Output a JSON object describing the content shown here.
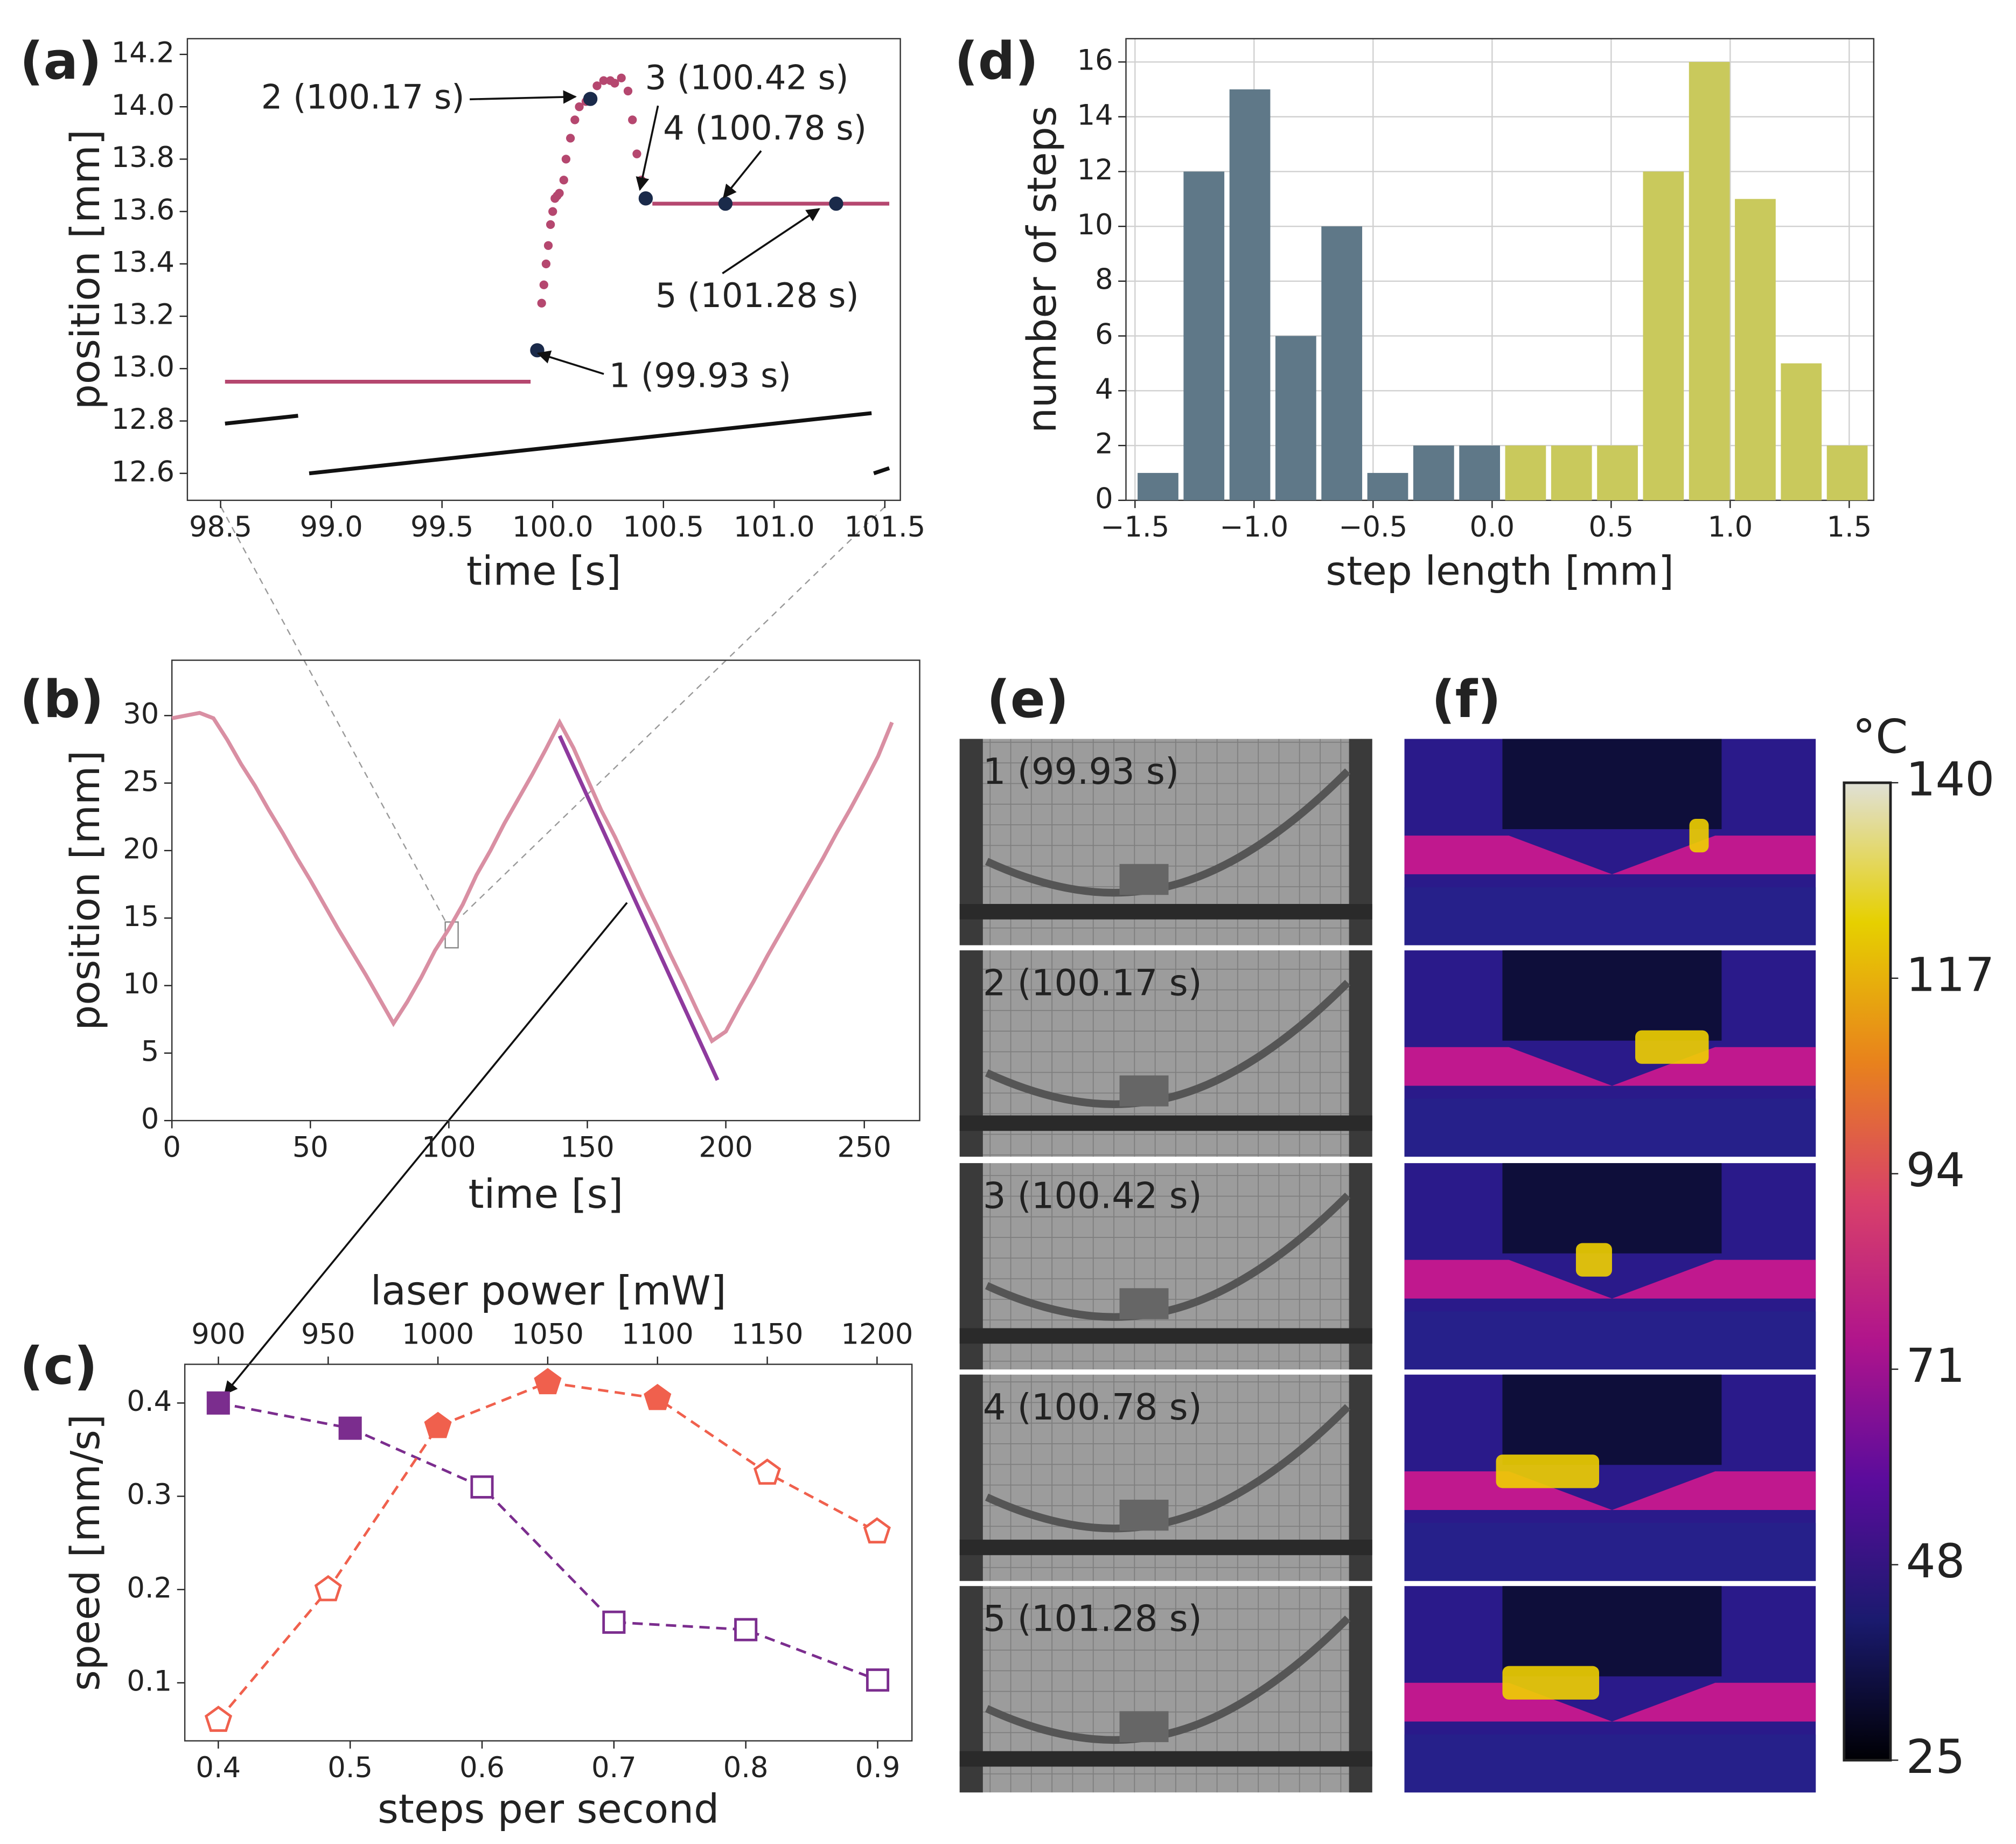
{
  "panels": [
    "(a)",
    "(b)",
    "(c)",
    "(d)",
    "(e)",
    "(f)"
  ],
  "frames": [
    "1 (99.93 s)",
    "2 (100.17 s)",
    "3 (100.42 s)",
    "4 (100.78 s)",
    "5 (101.28 s)"
  ],
  "chart_data": [
    {
      "type": "line",
      "xlabel": "time [s]",
      "ylabel": "position [mm]",
      "xlim": [
        98.35,
        101.57
      ],
      "ylim": [
        12.497,
        14.26
      ],
      "xticks": [
        98.5,
        {
          "value": 99,
          "label": "99.0"
        },
        99.5,
        {
          "value": 100,
          "label": "100.0"
        },
        100.5,
        {
          "value": 101,
          "label": "101.0"
        },
        101.5
      ],
      "yticks": [
        12.6,
        12.8,
        {
          "value": 13,
          "label": "13.0"
        },
        13.2,
        13.4,
        13.6,
        13.8,
        {
          "value": 14,
          "label": "14.0"
        },
        14.2
      ],
      "annotations": [
        "1 (99.93 s)",
        "2 (100.17 s)",
        "3 (100.42 s)",
        "4 (100.78 s)",
        "5 (101.28 s)"
      ],
      "series": [
        {
          "color": "#b5476f",
          "line": "solid",
          "x": [
            98.52,
            99.9
          ],
          "values": [
            12.95,
            12.95
          ]
        },
        {
          "color": "#b5476f",
          "line": "solid",
          "x": [
            100.45,
            101.52
          ],
          "values": [
            13.63,
            13.63
          ]
        },
        {
          "color": "#b5476f",
          "marker": "dot",
          "x": [
            99.93,
            99.95,
            99.96,
            99.97,
            99.98,
            99.99,
            100.0,
            100.01,
            100.02,
            100.03,
            100.05,
            100.06,
            100.08,
            100.1,
            100.12,
            100.15,
            100.17,
            100.2,
            100.23,
            100.26,
            100.28,
            100.31,
            100.34,
            100.36,
            100.38,
            100.4,
            100.42
          ],
          "values": [
            13.07,
            13.25,
            13.32,
            13.4,
            13.47,
            13.55,
            13.6,
            13.65,
            13.66,
            13.67,
            13.72,
            13.8,
            13.88,
            13.95,
            14.0,
            14.02,
            14.03,
            14.08,
            14.1,
            14.1,
            14.09,
            14.11,
            14.06,
            13.95,
            13.82,
            13.72,
            13.65
          ]
        },
        {
          "color": "#111111",
          "line": "solid",
          "x": [
            98.52,
            98.85
          ],
          "values": [
            12.79,
            12.82
          ]
        },
        {
          "color": "#111111",
          "line": "solid",
          "x": [
            98.9,
            101.44
          ],
          "values": [
            12.6,
            12.83
          ]
        },
        {
          "color": "#111111",
          "line": "solid",
          "x": [
            101.45,
            101.52
          ],
          "values": [
            12.6,
            12.62
          ]
        },
        {
          "color": "#1a2a4a",
          "marker": "circle",
          "x": [
            99.93,
            100.17,
            100.42,
            100.78,
            101.28
          ],
          "values": [
            13.07,
            14.03,
            13.65,
            13.63,
            13.63
          ]
        }
      ]
    },
    {
      "type": "line",
      "xlabel": "time [s]",
      "ylabel": "position [mm]",
      "xlim": [
        0,
        270
      ],
      "ylim": [
        0,
        34.1
      ],
      "xticks": [
        0,
        50,
        100,
        150,
        200,
        250
      ],
      "yticks": [
        0,
        5,
        10,
        15,
        20,
        25,
        30
      ],
      "series": [
        {
          "color": "#d98fa3",
          "line": "solid",
          "x": [
            0,
            5,
            10,
            15,
            20,
            25,
            30,
            35,
            40,
            45,
            50,
            55,
            60,
            65,
            70,
            75,
            80,
            85,
            90,
            95,
            100,
            105,
            110,
            115,
            120,
            125,
            130,
            135,
            140,
            145,
            150,
            155,
            160,
            165,
            170,
            175,
            180,
            185,
            190,
            195,
            200,
            205,
            210,
            215,
            220,
            225,
            230,
            235,
            240,
            245,
            250,
            255,
            260
          ],
          "values": [
            29.8,
            30,
            30.2,
            29.8,
            28.2,
            26.4,
            24.8,
            23,
            21.3,
            19.5,
            17.8,
            16,
            14.2,
            12.5,
            10.8,
            9,
            7.2,
            8.8,
            10.6,
            12.6,
            14.2,
            16,
            18.2,
            20,
            22,
            23.8,
            25.6,
            27.5,
            29.5,
            27.6,
            25.3,
            23,
            21,
            18.8,
            16.6,
            14.5,
            12.3,
            10.2,
            8,
            5.9,
            6.6,
            8.5,
            10.3,
            12.2,
            14,
            15.8,
            17.6,
            19.4,
            21.3,
            23.1,
            25,
            27,
            29.5
          ]
        },
        {
          "color": "#8e3a9e",
          "line": "solid",
          "x": [
            140,
            197
          ],
          "values": [
            28.5,
            3
          ]
        }
      ]
    },
    {
      "type": "line",
      "xlabel": "steps per second",
      "x2label": "laser power [mW]",
      "ylabel": "speed [mm/s]",
      "xlim": [
        0.3746,
        0.926
      ],
      "x2lim": [
        884.7,
        1215.9
      ],
      "ylim": [
        0.0378,
        0.4415
      ],
      "xticks": [
        0.4,
        0.5,
        0.6,
        0.7,
        0.8,
        0.9
      ],
      "x2ticks": [
        900,
        950,
        1000,
        1050,
        1100,
        1150,
        1200
      ],
      "yticks": [
        0.1,
        0.2,
        0.3,
        0.4
      ],
      "series": [
        {
          "color": "#7b2d8e",
          "line": "dashed",
          "marker": "square",
          "x": [
            0.4,
            0.5,
            0.6,
            0.7,
            0.8,
            0.9
          ],
          "values": [
            0.4,
            0.373,
            0.31,
            0.165,
            0.157,
            0.103
          ],
          "filled": [
            true,
            true,
            false,
            false,
            false,
            false
          ]
        },
        {
          "color": "#f0604d",
          "line": "dashed",
          "marker": "pentagon",
          "axis": "x2",
          "x": [
            900,
            950,
            1000,
            1050,
            1100,
            1150,
            1200
          ],
          "values": [
            0.06,
            0.2,
            0.375,
            0.422,
            0.405,
            0.325,
            0.262
          ],
          "filled": [
            false,
            false,
            true,
            true,
            true,
            false,
            false
          ]
        }
      ]
    },
    {
      "type": "histogram",
      "xlabel": "step length [mm]",
      "ylabel": "number of steps",
      "grid": true,
      "xlim": [
        -1.538,
        1.603
      ],
      "ylim": [
        0,
        16.85
      ],
      "xticks": [
        {
          "value": -1.5,
          "label": "−1.5"
        },
        {
          "value": -1,
          "label": "−1.0"
        },
        {
          "value": -0.5,
          "label": "−0.5"
        },
        {
          "value": 0,
          "label": "0.0"
        },
        0.5,
        {
          "value": 1,
          "label": "1.0"
        },
        1.5
      ],
      "yticks": [
        0,
        2,
        4,
        6,
        8,
        10,
        12,
        14,
        16
      ],
      "bins": [
        -1.5,
        -1.307,
        -1.114,
        -0.921,
        -0.728,
        -0.535,
        -0.342,
        -0.149,
        0.044,
        0.237,
        0.43,
        0.623,
        0.816,
        1.009,
        1.202,
        1.395,
        1.588
      ],
      "counts": [
        1,
        12,
        15,
        6,
        10,
        1,
        2,
        2,
        2,
        2,
        2,
        12,
        16,
        11,
        5,
        2
      ],
      "colors": [
        "#5f7888",
        "#5f7888",
        "#5f7888",
        "#5f7888",
        "#5f7888",
        "#5f7888",
        "#5f7888",
        "#5f7888",
        "#c9c95c",
        "#c9c95c",
        "#c9c95c",
        "#c9c95c",
        "#c9c95c",
        "#c9c95c",
        "#c9c95c",
        "#c9c95c"
      ]
    },
    {
      "type": "colorbar",
      "label": "°C",
      "ylim": [
        25,
        140
      ],
      "yticks": [
        25,
        48,
        71,
        94,
        117,
        140
      ],
      "colormap": [
        "#000004",
        "#1a1a6e",
        "#5a0c9c",
        "#b0148c",
        "#d8406a",
        "#e8821c",
        "#e6d000",
        "#e0e0d6"
      ]
    }
  ]
}
